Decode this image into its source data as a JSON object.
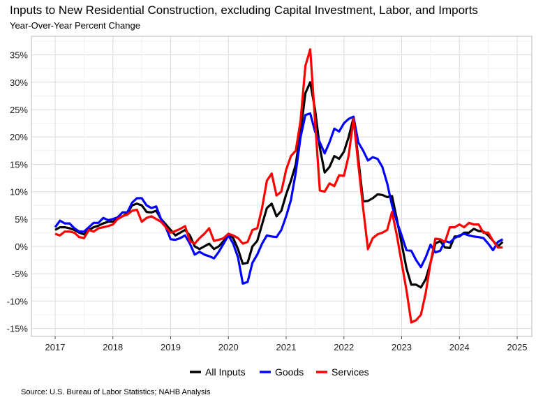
{
  "chart_data": {
    "type": "line",
    "title": "Inputs to New Residential Construction, excluding Capital Investment, Labor, and Imports",
    "subtitle": "Year-Over-Year Percent Change",
    "source": "Source: U.S. Bureau of Labor Statistics; NAHB Analysis",
    "x_start": "2017-01",
    "x_frequency": "monthly",
    "xlim": [
      2017,
      2025
    ],
    "x_ticks": [
      "2017",
      "2018",
      "2019",
      "2020",
      "2021",
      "2022",
      "2023",
      "2024",
      "2025"
    ],
    "ylim": [
      -15,
      35
    ],
    "y_ticks": [
      "-15%",
      "-10%",
      "-5%",
      "0%",
      "5%",
      "10%",
      "15%",
      "20%",
      "25%",
      "30%",
      "35%"
    ],
    "y_tick_values": [
      -15,
      -10,
      -5,
      0,
      5,
      10,
      15,
      20,
      25,
      30,
      35
    ],
    "grid": true,
    "legend_position": "bottom",
    "series": [
      {
        "name": "All Inputs",
        "color": "#000000",
        "values": [
          3.0,
          3.5,
          3.5,
          3.3,
          3.0,
          2.5,
          2.2,
          3.0,
          3.5,
          3.8,
          4.2,
          4.5,
          4.5,
          5.0,
          5.5,
          6.0,
          7.5,
          7.8,
          7.5,
          6.3,
          6.2,
          6.5,
          5.0,
          4.0,
          3.0,
          2.0,
          2.5,
          3.0,
          2.0,
          0.0,
          -0.5,
          0.0,
          0.5,
          -0.5,
          0.0,
          1.0,
          2.3,
          1.5,
          -0.5,
          -3.2,
          -3.0,
          0.0,
          1.0,
          4.0,
          7.0,
          7.8,
          5.5,
          6.5,
          9.5,
          12.0,
          15.0,
          21.0,
          28.0,
          30.0,
          25.0,
          18.0,
          13.5,
          14.5,
          16.5,
          16.0,
          17.3,
          20.0,
          23.5,
          16.0,
          8.2,
          8.3,
          8.8,
          9.5,
          9.4,
          9.0,
          9.2,
          5.0,
          0.5,
          -4.0,
          -7.0,
          -7.0,
          -7.5,
          -6.0,
          -3.0,
          0.5,
          1.0,
          -0.2,
          -0.3,
          1.8,
          1.8,
          2.5,
          2.5,
          3.2,
          2.8,
          2.7,
          2.0,
          1.0,
          0.0,
          0.8
        ]
      },
      {
        "name": "Goods",
        "color": "#0000ff",
        "values": [
          3.5,
          4.7,
          4.2,
          4.2,
          3.3,
          2.7,
          2.7,
          3.5,
          4.3,
          4.3,
          5.2,
          4.8,
          5.0,
          5.3,
          6.2,
          6.2,
          8.0,
          8.8,
          8.8,
          7.5,
          7.0,
          7.3,
          5.0,
          3.5,
          1.3,
          1.2,
          1.5,
          2.0,
          0.5,
          -1.5,
          -1.0,
          -1.5,
          -1.8,
          -2.2,
          -1.0,
          0.5,
          2.0,
          0.5,
          -2.0,
          -6.8,
          -6.5,
          -3.0,
          -1.5,
          0.5,
          2.0,
          1.8,
          1.7,
          3.0,
          5.5,
          8.5,
          13.5,
          20.0,
          24.0,
          24.3,
          21.0,
          19.0,
          17.0,
          19.0,
          21.5,
          21.0,
          22.5,
          23.3,
          23.7,
          19.0,
          17.5,
          15.7,
          16.3,
          16.0,
          14.5,
          11.5,
          7.5,
          4.5,
          2.0,
          -0.7,
          -0.8,
          -2.5,
          -3.8,
          -2.0,
          0.3,
          -1.1,
          -0.8,
          1.0,
          0.7,
          1.5,
          2.0,
          2.3,
          2.0,
          1.8,
          1.7,
          1.5,
          0.5,
          -0.7,
          0.8,
          1.3
        ]
      },
      {
        "name": "Services",
        "color": "#ff0000",
        "values": [
          2.3,
          2.0,
          2.7,
          2.7,
          2.5,
          1.7,
          1.5,
          3.0,
          2.7,
          3.3,
          3.5,
          3.7,
          4.0,
          5.0,
          5.5,
          5.8,
          6.5,
          6.7,
          4.5,
          5.2,
          5.5,
          5.0,
          4.5,
          3.5,
          2.5,
          2.8,
          3.2,
          3.7,
          1.0,
          0.5,
          1.5,
          2.3,
          3.3,
          1.0,
          1.2,
          1.5,
          2.3,
          2.0,
          1.5,
          0.5,
          0.8,
          3.0,
          3.3,
          7.0,
          12.0,
          13.3,
          9.3,
          10.0,
          14.0,
          16.5,
          17.5,
          23.0,
          33.0,
          36.0,
          23.0,
          10.2,
          10.0,
          11.5,
          11.0,
          13.0,
          12.9,
          16.6,
          23.3,
          15.0,
          7.0,
          -0.5,
          1.5,
          2.2,
          2.5,
          3.0,
          6.3,
          2.0,
          -3.0,
          -8.0,
          -13.9,
          -13.5,
          -12.5,
          -8.5,
          -3.0,
          1.4,
          1.3,
          0.8,
          3.5,
          3.5,
          4.0,
          3.5,
          4.3,
          4.0,
          4.0,
          2.5,
          2.5,
          1.0,
          -0.2,
          -0.2
        ]
      }
    ]
  }
}
